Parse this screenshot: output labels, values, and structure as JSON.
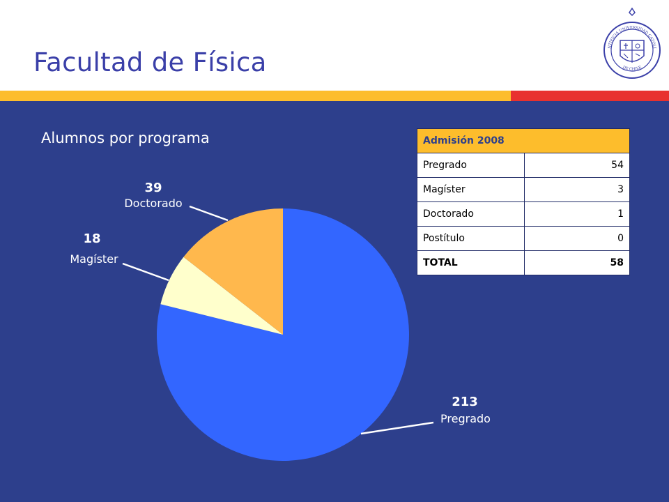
{
  "slide": {
    "title": "Facultad de Física",
    "subtitle": "Alumnos por programa"
  },
  "colors": {
    "title": "#3A3FA8",
    "background": "#2D3F8C",
    "stripe_yellow": "#FDBD2C",
    "stripe_red": "#E8312F"
  },
  "chart_data": {
    "type": "pie",
    "title": "Alumnos por programa",
    "slices": [
      {
        "label": "Pregrado",
        "value": 213,
        "color": "#3366FF"
      },
      {
        "label": "Magíster",
        "value": 18,
        "color": "#FFFFCC"
      },
      {
        "label": "Doctorado",
        "value": 39,
        "color": "#FFB84D"
      }
    ]
  },
  "table": {
    "header": "Admisión 2008",
    "rows": [
      {
        "label": "Pregrado",
        "value": "54"
      },
      {
        "label": "Magíster",
        "value": "3"
      },
      {
        "label": "Doctorado",
        "value": "1"
      },
      {
        "label": "Postítulo",
        "value": "0"
      },
      {
        "label": "TOTAL",
        "value": "58"
      }
    ]
  },
  "logo": {
    "text_top": "PONTIFICIA UNIVERSIDAD CATOLICA",
    "text_bottom": "DE CHILE",
    "icon": "university-seal-icon"
  }
}
